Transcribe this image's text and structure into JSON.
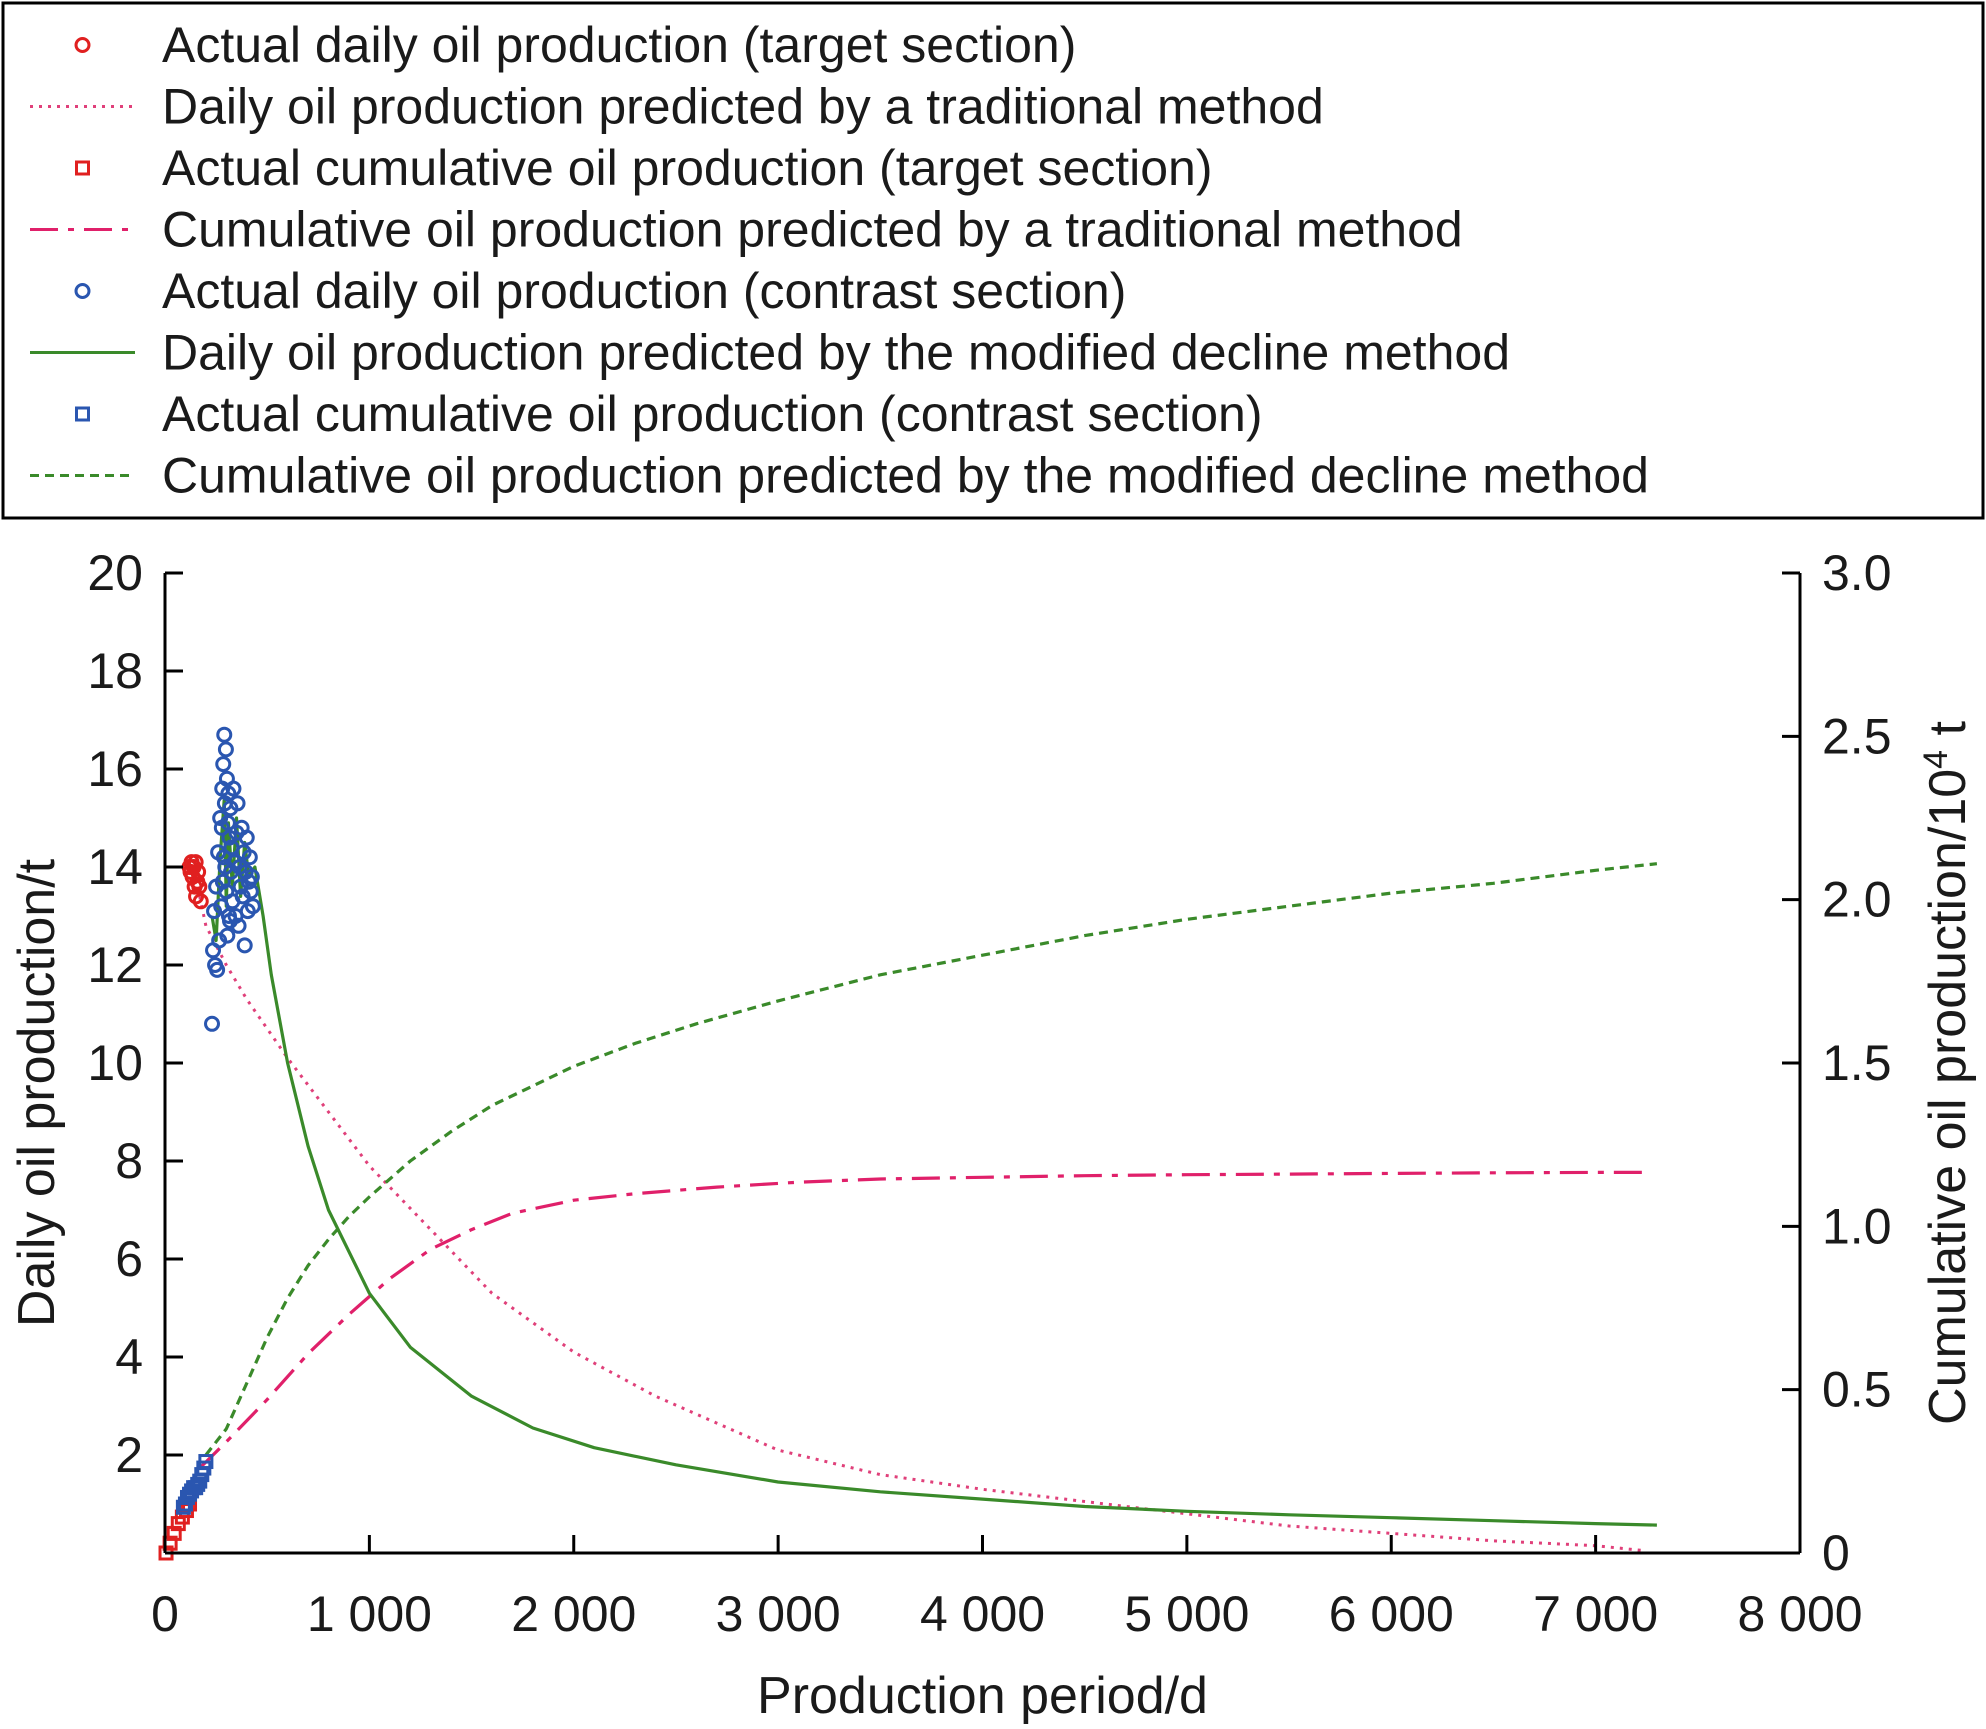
{
  "chart_data": {
    "type": "line",
    "legend_position": "top",
    "grid": false,
    "xlabel": "Production period/d",
    "ylabel": "Daily oil production/t",
    "y2label_main": "Cumulative oil production/10",
    "y2label_sup": "4",
    "y2label_unit": " t",
    "xlim": [
      0,
      8000
    ],
    "ylim": [
      0,
      20
    ],
    "y2lim": [
      0,
      3.0
    ],
    "x_ticks": [
      {
        "value": 0,
        "label": "0"
      },
      {
        "value": 1000,
        "label": "1 000"
      },
      {
        "value": 2000,
        "label": "2 000"
      },
      {
        "value": 3000,
        "label": "3 000"
      },
      {
        "value": 4000,
        "label": "4 000"
      },
      {
        "value": 5000,
        "label": "5 000"
      },
      {
        "value": 6000,
        "label": "6 000"
      },
      {
        "value": 7000,
        "label": "7 000"
      },
      {
        "value": 8000,
        "label": "8 000"
      }
    ],
    "y_ticks": [
      {
        "value": 2,
        "label": "2"
      },
      {
        "value": 4,
        "label": "4"
      },
      {
        "value": 6,
        "label": "6"
      },
      {
        "value": 8,
        "label": "8"
      },
      {
        "value": 10,
        "label": "10"
      },
      {
        "value": 12,
        "label": "12"
      },
      {
        "value": 14,
        "label": "14"
      },
      {
        "value": 16,
        "label": "16"
      },
      {
        "value": 18,
        "label": "18"
      },
      {
        "value": 20,
        "label": "20"
      }
    ],
    "y2_ticks": [
      {
        "value": 0,
        "label": "0"
      },
      {
        "value": 0.5,
        "label": "0.5"
      },
      {
        "value": 1.0,
        "label": "1.0"
      },
      {
        "value": 1.5,
        "label": "1.5"
      },
      {
        "value": 2.0,
        "label": "2.0"
      },
      {
        "value": 2.5,
        "label": "2.5"
      },
      {
        "value": 3.0,
        "label": "3.0"
      }
    ],
    "series": [
      {
        "name": "Actual daily oil production (target section)",
        "axis": "left",
        "kind": "scatter",
        "marker": "circle",
        "color": "#e02020",
        "x": [
          120,
          125,
          130,
          135,
          140,
          145,
          150,
          152,
          158,
          162,
          168,
          175
        ],
        "y": [
          14.0,
          13.9,
          14.1,
          13.8,
          14.0,
          13.6,
          14.1,
          13.4,
          13.7,
          13.9,
          13.6,
          13.3
        ]
      },
      {
        "name": "Daily oil production predicted by a traditional method",
        "axis": "left",
        "kind": "line",
        "dash": "dotted",
        "color": "#e0407a",
        "x": [
          170,
          200,
          300,
          400,
          600,
          800,
          1000,
          1300,
          1600,
          2000,
          2400,
          3000,
          3500,
          4000,
          4500,
          5000,
          5500,
          6000,
          6500,
          7000,
          7230
        ],
        "y": [
          13.4,
          12.8,
          12.0,
          11.3,
          10.1,
          9.0,
          7.9,
          6.6,
          5.3,
          4.1,
          3.2,
          2.1,
          1.6,
          1.3,
          1.05,
          0.8,
          0.55,
          0.4,
          0.25,
          0.15,
          0.05
        ]
      },
      {
        "name": "Actual cumulative oil production (target section)",
        "axis": "right",
        "kind": "scatter",
        "marker": "square",
        "color": "#e02020",
        "x": [
          5,
          25,
          45,
          65,
          85,
          105,
          120
        ],
        "y": [
          0.0,
          0.03,
          0.06,
          0.09,
          0.11,
          0.13,
          0.15
        ]
      },
      {
        "name": "Cumulative oil production predicted by a traditional method",
        "axis": "right",
        "kind": "line",
        "dash": "dashdot",
        "color": "#e0206a",
        "x": [
          170,
          300,
          500,
          700,
          900,
          1100,
          1300,
          1500,
          1700,
          2000,
          2300,
          2700,
          3100,
          3500,
          4000,
          4500,
          5000,
          5500,
          6000,
          6500,
          7000,
          7230
        ],
        "y": [
          0.26,
          0.34,
          0.47,
          0.61,
          0.73,
          0.84,
          0.93,
          0.99,
          1.04,
          1.08,
          1.1,
          1.12,
          1.135,
          1.145,
          1.15,
          1.155,
          1.158,
          1.16,
          1.162,
          1.164,
          1.165,
          1.165
        ]
      },
      {
        "name": "Actual daily oil production (contrast section)",
        "axis": "left",
        "kind": "scatter",
        "marker": "circle",
        "color": "#2a56b0",
        "x": [
          230,
          235,
          240,
          245,
          250,
          255,
          260,
          265,
          270,
          275,
          278,
          280,
          283,
          285,
          288,
          290,
          293,
          295,
          298,
          300,
          303,
          305,
          308,
          310,
          313,
          315,
          318,
          320,
          323,
          325,
          330,
          335,
          340,
          345,
          350,
          355,
          360,
          365,
          370,
          375,
          380,
          385,
          390,
          395,
          400,
          405,
          410,
          415,
          420,
          425,
          430
        ],
        "y": [
          10.8,
          12.3,
          13.1,
          12.0,
          13.6,
          11.9,
          14.3,
          12.5,
          15.0,
          13.2,
          14.8,
          15.6,
          13.7,
          16.1,
          14.2,
          16.7,
          15.3,
          14.0,
          16.4,
          13.5,
          15.8,
          12.6,
          14.9,
          15.5,
          13.0,
          14.6,
          12.9,
          15.2,
          13.9,
          14.4,
          13.3,
          15.6,
          14.1,
          13.0,
          14.7,
          15.3,
          12.8,
          14.0,
          13.6,
          14.8,
          13.4,
          14.3,
          12.4,
          13.9,
          14.6,
          13.1,
          13.7,
          14.2,
          13.5,
          13.8,
          13.2
        ]
      },
      {
        "name": "Daily oil production predicted by the modified decline method",
        "axis": "left",
        "kind": "line",
        "dash": "solid",
        "color": "#3a8a2a",
        "x": [
          230,
          250,
          270,
          290,
          300,
          310,
          330,
          350,
          370,
          390,
          410,
          440,
          480,
          520,
          600,
          700,
          800,
          1000,
          1200,
          1500,
          1800,
          2100,
          2500,
          3000,
          3500,
          4000,
          4500,
          5000,
          5500,
          6000,
          6500,
          7000,
          7300
        ],
        "y": [
          13.0,
          12.5,
          14.2,
          15.4,
          13.2,
          14.9,
          13.6,
          15.0,
          13.4,
          14.5,
          13.8,
          14.0,
          13.0,
          11.8,
          10.0,
          8.3,
          7.0,
          5.3,
          4.2,
          3.2,
          2.55,
          2.15,
          1.8,
          1.45,
          1.25,
          1.1,
          0.95,
          0.85,
          0.78,
          0.72,
          0.66,
          0.6,
          0.57
        ]
      },
      {
        "name": "Actual cumulative oil production (contrast section)",
        "axis": "right",
        "kind": "scatter",
        "marker": "square",
        "color": "#2a56b0",
        "x": [
          90,
          100,
          110,
          120,
          130,
          140,
          150,
          160,
          170,
          180,
          190,
          200
        ],
        "y": [
          0.14,
          0.15,
          0.17,
          0.18,
          0.19,
          0.2,
          0.2,
          0.21,
          0.22,
          0.24,
          0.26,
          0.28
        ]
      },
      {
        "name": "Cumulative oil production predicted by the modified decline method",
        "axis": "right",
        "kind": "line",
        "dash": "dashed",
        "color": "#3a8a2a",
        "x": [
          200,
          300,
          400,
          500,
          600,
          700,
          800,
          900,
          1000,
          1200,
          1400,
          1600,
          1800,
          2000,
          2300,
          2600,
          3000,
          3500,
          4000,
          4500,
          5000,
          5500,
          6000,
          6500,
          7000,
          7300
        ],
        "y": [
          0.3,
          0.38,
          0.52,
          0.66,
          0.78,
          0.88,
          0.96,
          1.03,
          1.09,
          1.2,
          1.29,
          1.37,
          1.43,
          1.49,
          1.56,
          1.62,
          1.69,
          1.77,
          1.83,
          1.89,
          1.94,
          1.98,
          2.02,
          2.05,
          2.09,
          2.11
        ]
      }
    ]
  }
}
